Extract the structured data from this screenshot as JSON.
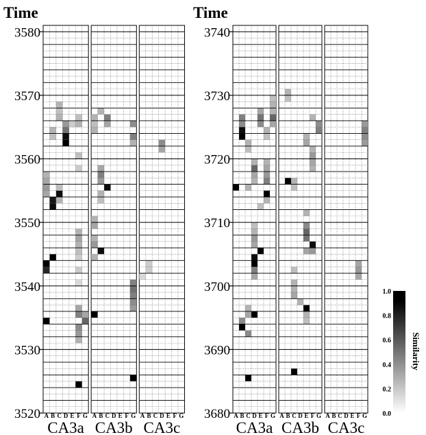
{
  "chart_data": {
    "type": "heatmap",
    "title": "",
    "columns": [
      "A",
      "B",
      "C",
      "D",
      "E",
      "F",
      "G"
    ],
    "groups": [
      "CA3a",
      "CA3b",
      "CA3c"
    ],
    "colorbar": {
      "label": "Similarity",
      "range": [
        0,
        1
      ],
      "ticks": [
        "0.0",
        "0.2",
        "0.4",
        "0.6",
        "0.8",
        "1.0"
      ],
      "colors": [
        "#ffffff",
        "#000000"
      ]
    },
    "panels": [
      {
        "ylabel": "Time",
        "ylim": [
          3520,
          3581
        ],
        "yticks": [
          "3520",
          "3530",
          "3540",
          "3550",
          "3560",
          "3570",
          "3580"
        ],
        "cells": [
          [
            3565,
            0,
            0,
            3,
            0.4
          ],
          [
            3566,
            0,
            0,
            2,
            0.3
          ],
          [
            3567,
            0,
            0,
            2,
            0.25
          ],
          [
            3568,
            0,
            0,
            2,
            0.3
          ],
          [
            3564,
            0,
            0,
            1,
            0.3
          ],
          [
            3563,
            0,
            0,
            1,
            0.25
          ],
          [
            3564,
            0,
            0,
            3,
            0.55
          ],
          [
            3563,
            0,
            0,
            3,
            0.95
          ],
          [
            3562,
            0,
            0,
            3,
            1.0
          ],
          [
            3565,
            0,
            0,
            4,
            0.2
          ],
          [
            3556,
            0,
            0,
            0,
            0.35
          ],
          [
            3557,
            0,
            0,
            0,
            0.3
          ],
          [
            3555,
            0,
            0,
            0,
            0.4
          ],
          [
            3554,
            0,
            0,
            0,
            0.35
          ],
          [
            3553,
            0,
            0,
            1,
            0.9
          ],
          [
            3552,
            0,
            0,
            1,
            0.95
          ],
          [
            3554,
            0,
            0,
            2,
            0.95
          ],
          [
            3553,
            0,
            0,
            2,
            0.3
          ],
          [
            3555,
            0,
            0,
            2,
            0.25
          ],
          [
            3543,
            0,
            0,
            0,
            1.0
          ],
          [
            3542,
            0,
            0,
            0,
            0.85
          ],
          [
            3544,
            0,
            0,
            1,
            1.0
          ],
          [
            3534,
            0,
            0,
            0,
            1.0
          ],
          [
            3524,
            0,
            0,
            5,
            1.0
          ],
          [
            3558,
            0,
            0,
            5,
            0.2
          ],
          [
            3560,
            0,
            0,
            5,
            0.25
          ],
          [
            3565,
            0,
            0,
            5,
            0.3
          ],
          [
            3566,
            0,
            0,
            5,
            0.25
          ],
          [
            3548,
            0,
            0,
            5,
            0.3
          ],
          [
            3547,
            0,
            0,
            5,
            0.35
          ],
          [
            3546,
            0,
            0,
            5,
            0.3
          ],
          [
            3545,
            0,
            0,
            5,
            0.25
          ],
          [
            3544,
            0,
            0,
            5,
            0.2
          ],
          [
            3542,
            0,
            0,
            5,
            0.2
          ],
          [
            3540,
            0,
            0,
            5,
            0.15
          ],
          [
            3536,
            0,
            0,
            5,
            0.35
          ],
          [
            3535,
            0,
            0,
            5,
            0.5
          ],
          [
            3533,
            0,
            0,
            5,
            0.45
          ],
          [
            3532,
            0,
            0,
            5,
            0.4
          ],
          [
            3531,
            0,
            0,
            5,
            0.3
          ],
          [
            3534,
            0,
            0,
            6,
            0.6
          ],
          [
            3535,
            0,
            0,
            6,
            0.35
          ],
          [
            3566,
            0,
            1,
            0,
            0.3
          ],
          [
            3565,
            0,
            1,
            0,
            0.25
          ],
          [
            3564,
            0,
            1,
            0,
            0.3
          ],
          [
            3567,
            0,
            1,
            1,
            0.3
          ],
          [
            3566,
            0,
            1,
            2,
            0.5
          ],
          [
            3565,
            0,
            1,
            2,
            0.35
          ],
          [
            3558,
            0,
            1,
            1,
            0.35
          ],
          [
            3557,
            0,
            1,
            1,
            0.5
          ],
          [
            3556,
            0,
            1,
            1,
            0.4
          ],
          [
            3555,
            0,
            1,
            2,
            0.95
          ],
          [
            3554,
            0,
            1,
            1,
            0.3
          ],
          [
            3553,
            0,
            1,
            1,
            0.25
          ],
          [
            3550,
            0,
            1,
            0,
            0.3
          ],
          [
            3549,
            0,
            1,
            0,
            0.35
          ],
          [
            3547,
            0,
            1,
            0,
            0.3
          ],
          [
            3546,
            0,
            1,
            0,
            0.4
          ],
          [
            3545,
            0,
            1,
            1,
            0.95
          ],
          [
            3544,
            0,
            1,
            0,
            0.3
          ],
          [
            3535,
            0,
            1,
            0,
            1.0
          ],
          [
            3525,
            0,
            1,
            6,
            1.0
          ],
          [
            3565,
            0,
            1,
            6,
            0.45
          ],
          [
            3563,
            0,
            1,
            6,
            0.5
          ],
          [
            3562,
            0,
            1,
            6,
            0.3
          ],
          [
            3540,
            0,
            1,
            6,
            0.5
          ],
          [
            3539,
            0,
            1,
            6,
            0.55
          ],
          [
            3538,
            0,
            1,
            6,
            0.5
          ],
          [
            3537,
            0,
            1,
            6,
            0.45
          ],
          [
            3536,
            0,
            1,
            6,
            0.4
          ],
          [
            3562,
            0,
            2,
            3,
            0.45
          ],
          [
            3561,
            0,
            2,
            3,
            0.35
          ],
          [
            3543,
            0,
            2,
            1,
            0.2
          ],
          [
            3542,
            0,
            2,
            1,
            0.2
          ],
          [
            3541,
            0,
            2,
            0,
            0.15
          ]
        ]
      },
      {
        "ylabel": "Time",
        "ylim": [
          3680,
          3741
        ],
        "yticks": [
          "3680",
          "3690",
          "3700",
          "3710",
          "3720",
          "3730",
          "3740"
        ],
        "cells": [
          [
            3726,
            1,
            0,
            1,
            0.5
          ],
          [
            3725,
            1,
            0,
            1,
            0.45
          ],
          [
            3724,
            1,
            0,
            1,
            0.95
          ],
          [
            3723,
            1,
            0,
            1,
            1.0
          ],
          [
            3722,
            1,
            0,
            2,
            0.3
          ],
          [
            3721,
            1,
            0,
            2,
            0.25
          ],
          [
            3727,
            1,
            0,
            4,
            0.35
          ],
          [
            3726,
            1,
            0,
            4,
            0.55
          ],
          [
            3725,
            1,
            0,
            4,
            0.45
          ],
          [
            3724,
            1,
            0,
            5,
            0.3
          ],
          [
            3723,
            1,
            0,
            5,
            0.25
          ],
          [
            3729,
            1,
            0,
            6,
            0.25
          ],
          [
            3728,
            1,
            0,
            6,
            0.3
          ],
          [
            3727,
            1,
            0,
            6,
            0.3
          ],
          [
            3726,
            1,
            0,
            6,
            0.6
          ],
          [
            3725,
            1,
            0,
            6,
            0.35
          ],
          [
            3719,
            1,
            0,
            3,
            0.3
          ],
          [
            3718,
            1,
            0,
            3,
            0.6
          ],
          [
            3717,
            1,
            0,
            3,
            0.35
          ],
          [
            3716,
            1,
            0,
            3,
            0.3
          ],
          [
            3715,
            1,
            0,
            0,
            1.0
          ],
          [
            3715,
            1,
            0,
            2,
            0.3
          ],
          [
            3714,
            1,
            0,
            5,
            1.0
          ],
          [
            3713,
            1,
            0,
            5,
            0.3
          ],
          [
            3712,
            1,
            0,
            4,
            0.25
          ],
          [
            3716,
            1,
            0,
            5,
            0.5
          ],
          [
            3717,
            1,
            0,
            5,
            0.4
          ],
          [
            3718,
            1,
            0,
            5,
            0.35
          ],
          [
            3719,
            1,
            0,
            5,
            0.3
          ],
          [
            3709,
            1,
            0,
            3,
            0.25
          ],
          [
            3708,
            1,
            0,
            3,
            0.3
          ],
          [
            3707,
            1,
            0,
            3,
            0.4
          ],
          [
            3706,
            1,
            0,
            3,
            0.35
          ],
          [
            3705,
            1,
            0,
            4,
            1.0
          ],
          [
            3704,
            1,
            0,
            3,
            0.95
          ],
          [
            3703,
            1,
            0,
            3,
            1.0
          ],
          [
            3702,
            1,
            0,
            3,
            0.5
          ],
          [
            3701,
            1,
            0,
            3,
            0.35
          ],
          [
            3696,
            1,
            0,
            2,
            0.3
          ],
          [
            3695,
            1,
            0,
            2,
            0.35
          ],
          [
            3694,
            1,
            0,
            1,
            0.45
          ],
          [
            3693,
            1,
            0,
            1,
            1.0
          ],
          [
            3692,
            1,
            0,
            2,
            0.45
          ],
          [
            3695,
            1,
            0,
            3,
            1.0
          ],
          [
            3685,
            1,
            0,
            2,
            1.0
          ],
          [
            3730,
            1,
            1,
            1,
            0.3
          ],
          [
            3729,
            1,
            1,
            1,
            0.25
          ],
          [
            3726,
            1,
            1,
            5,
            0.3
          ],
          [
            3725,
            1,
            1,
            6,
            0.45
          ],
          [
            3724,
            1,
            1,
            6,
            0.5
          ],
          [
            3723,
            1,
            1,
            4,
            0.3
          ],
          [
            3722,
            1,
            1,
            4,
            0.35
          ],
          [
            3721,
            1,
            1,
            5,
            0.3
          ],
          [
            3720,
            1,
            1,
            5,
            0.4
          ],
          [
            3719,
            1,
            1,
            5,
            0.35
          ],
          [
            3718,
            1,
            1,
            5,
            0.3
          ],
          [
            3716,
            1,
            1,
            1,
            1.0
          ],
          [
            3716,
            1,
            1,
            2,
            0.3
          ],
          [
            3715,
            1,
            1,
            2,
            0.25
          ],
          [
            3711,
            1,
            1,
            4,
            0.3
          ],
          [
            3709,
            1,
            1,
            4,
            0.45
          ],
          [
            3708,
            1,
            1,
            4,
            0.6
          ],
          [
            3707,
            1,
            1,
            4,
            0.55
          ],
          [
            3706,
            1,
            1,
            5,
            0.95
          ],
          [
            3705,
            1,
            1,
            4,
            0.35
          ],
          [
            3705,
            1,
            1,
            5,
            0.4
          ],
          [
            3702,
            1,
            1,
            2,
            0.25
          ],
          [
            3700,
            1,
            1,
            2,
            0.3
          ],
          [
            3699,
            1,
            1,
            2,
            0.3
          ],
          [
            3698,
            1,
            1,
            2,
            0.35
          ],
          [
            3697,
            1,
            1,
            3,
            0.3
          ],
          [
            3696,
            1,
            1,
            4,
            1.0
          ],
          [
            3695,
            1,
            1,
            4,
            0.3
          ],
          [
            3694,
            1,
            1,
            4,
            0.25
          ],
          [
            3686,
            1,
            1,
            2,
            1.0
          ],
          [
            3725,
            1,
            2,
            6,
            0.4
          ],
          [
            3724,
            1,
            2,
            6,
            0.5
          ],
          [
            3723,
            1,
            2,
            6,
            0.45
          ],
          [
            3722,
            1,
            2,
            6,
            0.4
          ],
          [
            3703,
            1,
            2,
            5,
            0.35
          ],
          [
            3702,
            1,
            2,
            5,
            0.4
          ],
          [
            3701,
            1,
            2,
            5,
            0.35
          ]
        ]
      }
    ]
  }
}
